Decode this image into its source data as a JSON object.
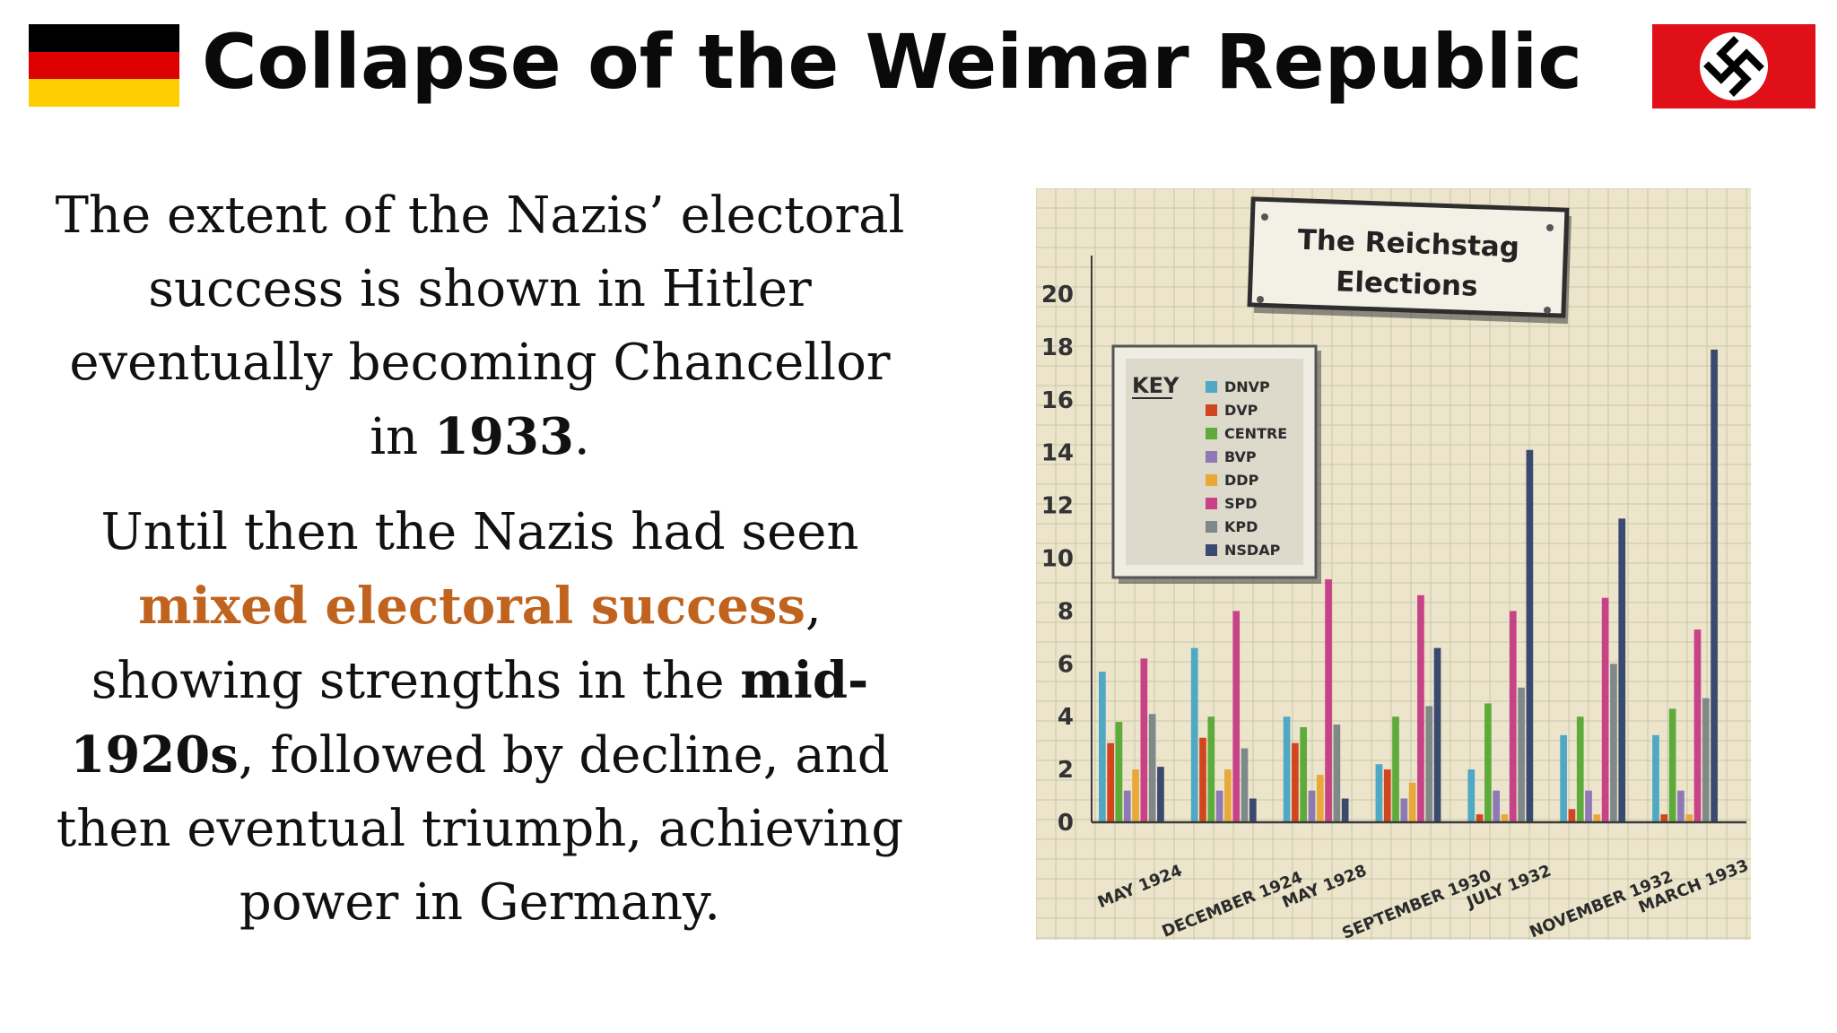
{
  "slide": {
    "title": "Collapse of the Weimar Republic",
    "paragraph1": {
      "part1": "The extent of the Nazis’ electoral success is shown in Hitler eventually becoming Chancellor in ",
      "bold1": "1933",
      "part2": "."
    },
    "paragraph2": {
      "part1": "Until then the Nazis had seen ",
      "highlight": "mixed electoral success",
      "part2": ", showing strengths in the ",
      "bold1": "mid-1920s",
      "part3": ", followed by decline, and then eventual triumph, achieving power in Germany."
    }
  },
  "colors": {
    "accent_orange": "#c0631f",
    "paper": "#ece5cc",
    "grid": "#c6c7a6"
  },
  "chart_data": {
    "type": "bar",
    "title": "The Reichstag Elections",
    "legend_heading": "KEY",
    "legend_position": "top-left",
    "grid": true,
    "ylim": [
      0,
      20
    ],
    "yticks": [
      0,
      2,
      4,
      6,
      8,
      10,
      12,
      14,
      16,
      18,
      20
    ],
    "categories": [
      "MAY 1924",
      "DECEMBER 1924",
      "MAY 1928",
      "SEPTEMBER 1930",
      "JULY 1932",
      "NOVEMBER 1932",
      "MARCH 1933"
    ],
    "series": [
      {
        "name": "DNVP",
        "color": "#4fa8c4",
        "values": [
          5.7,
          6.6,
          4.0,
          2.2,
          2.0,
          3.3,
          3.3
        ]
      },
      {
        "name": "DVP",
        "color": "#d2461f",
        "values": [
          3.0,
          3.2,
          3.0,
          2.0,
          0.3,
          0.5,
          0.3
        ]
      },
      {
        "name": "CENTRE",
        "color": "#5eaa3a",
        "values": [
          3.8,
          4.0,
          3.6,
          4.0,
          4.5,
          4.0,
          4.3
        ]
      },
      {
        "name": "BVP",
        "color": "#8e79b5",
        "values": [
          1.2,
          1.2,
          1.2,
          0.9,
          1.2,
          1.2,
          1.2
        ]
      },
      {
        "name": "DDP",
        "color": "#e8a93a",
        "values": [
          2.0,
          2.0,
          1.8,
          1.5,
          0.3,
          0.3,
          0.3
        ]
      },
      {
        "name": "SPD",
        "color": "#c84287",
        "values": [
          6.2,
          8.0,
          9.2,
          8.6,
          8.0,
          8.5,
          7.3
        ]
      },
      {
        "name": "KPD",
        "color": "#80898a",
        "values": [
          4.1,
          2.8,
          3.7,
          4.4,
          5.1,
          6.0,
          4.7
        ]
      },
      {
        "name": "NSDAP",
        "color": "#3a4a6e",
        "values": [
          2.1,
          0.9,
          0.9,
          6.6,
          14.1,
          11.5,
          17.9
        ]
      }
    ]
  }
}
